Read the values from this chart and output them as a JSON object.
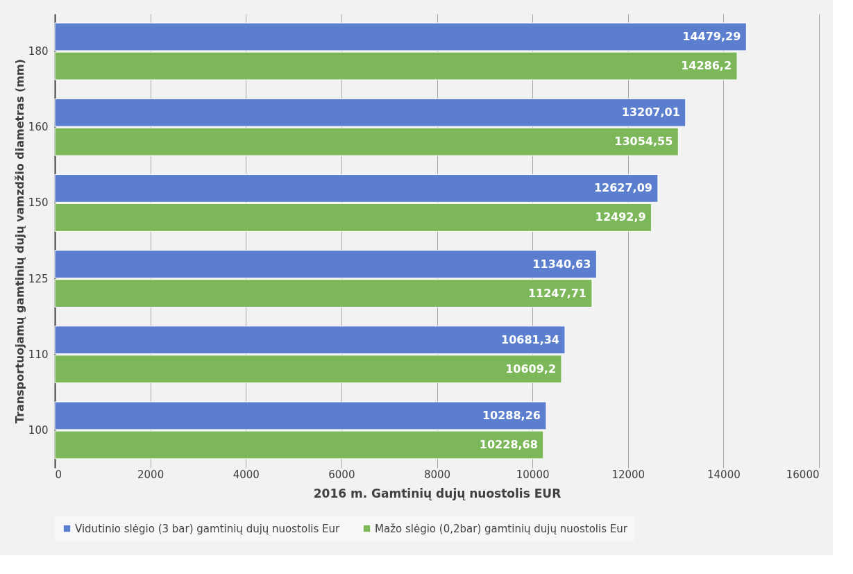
{
  "chart_data": {
    "type": "bar",
    "orientation": "horizontal",
    "xlabel": "2016 m. Gamtinių dujų nuostolis EUR",
    "ylabel": "Transportuojamų gamtinių dujų vamzdžio diametras (mm)",
    "categories": [
      "180",
      "160",
      "150",
      "125",
      "110",
      "100"
    ],
    "series": [
      {
        "name": "Vidutinio slėgio (3 bar) gamtinių dujų nuostolis Eur",
        "color": "#5b7fce",
        "values": [
          14479.29,
          13207.01,
          12627.09,
          11340.63,
          10681.34,
          10288.26
        ],
        "value_labels": [
          "14479,29",
          "13207,01",
          "12627,09",
          "11340,63",
          "10681,34",
          "10288,26"
        ]
      },
      {
        "name": "Mažo slėgio (0,2bar) gamtinių dujų nuostolis Eur",
        "color": "#7cb85a",
        "values": [
          14286.2,
          13054.55,
          12492.9,
          11247.71,
          10609.2,
          10228.68
        ],
        "value_labels": [
          "14286,2",
          "13054,55",
          "12492,9",
          "11247,71",
          "10609,2",
          "10228,68"
        ]
      }
    ],
    "xlim": [
      0,
      16000
    ],
    "xticks": [
      0,
      2000,
      4000,
      6000,
      8000,
      10000,
      12000,
      14000,
      16000
    ],
    "grid": "x",
    "legend": "bottom"
  }
}
